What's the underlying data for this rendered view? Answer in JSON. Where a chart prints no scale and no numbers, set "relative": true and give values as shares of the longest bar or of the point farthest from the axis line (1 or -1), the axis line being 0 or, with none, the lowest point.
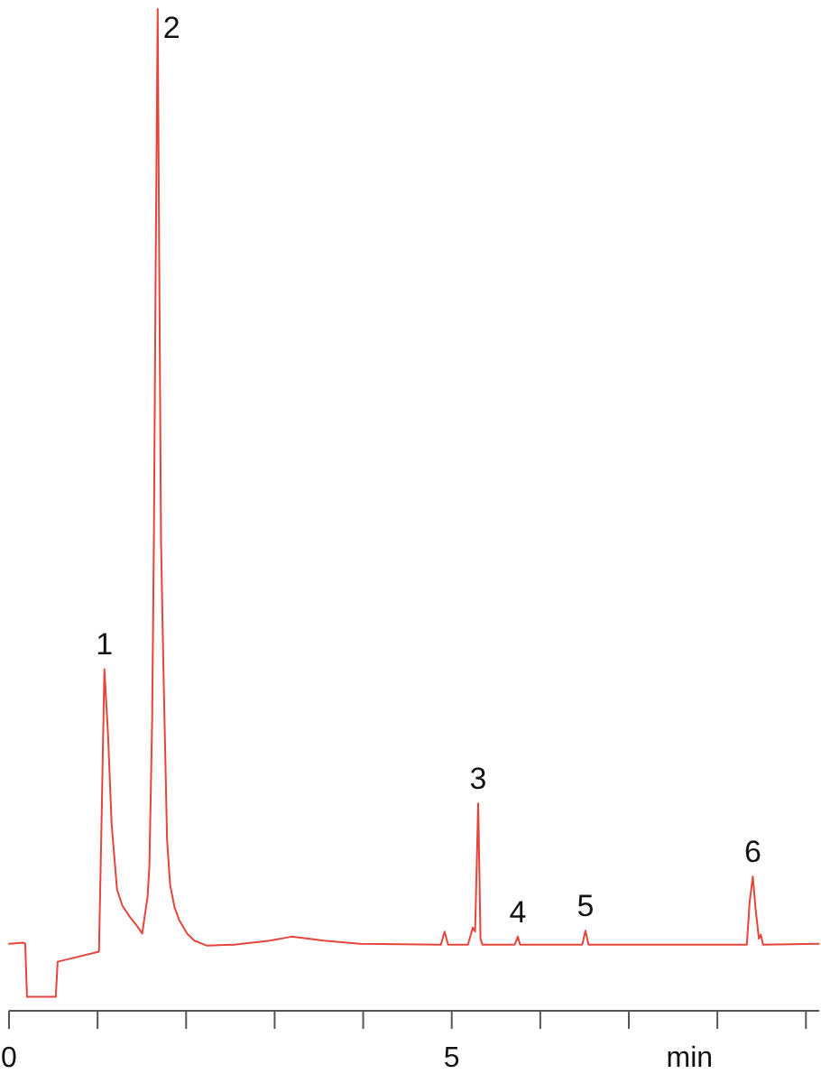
{
  "chart_data": {
    "type": "line",
    "xlabel": "min",
    "relative": true,
    "color": "#e5453b",
    "xlim": [
      0,
      9.15
    ],
    "xticks": [
      0,
      {
        "value": 1,
        "label": null
      },
      {
        "value": 2,
        "label": null
      },
      {
        "value": 3,
        "label": null
      },
      {
        "value": 4,
        "label": null
      },
      5,
      {
        "value": 6,
        "label": null
      },
      {
        "value": 7,
        "label": null
      },
      {
        "value": 8,
        "label": null
      },
      {
        "value": 9,
        "label": null
      }
    ],
    "x": [
      0,
      0.163,
      0.183,
      0.203,
      0.528,
      0.549,
      1.016,
      1.047,
      1.077,
      1.118,
      1.159,
      1.22,
      1.28,
      1.362,
      1.443,
      1.504,
      1.565,
      1.585,
      1.616,
      1.636,
      1.656,
      1.679,
      1.697,
      1.717,
      1.734,
      1.748,
      1.785,
      1.819,
      1.87,
      1.925,
      2.012,
      2.093,
      2.236,
      2.541,
      2.947,
      3.191,
      3.557,
      3.963,
      4.878,
      4.919,
      4.959,
      5.183,
      5.238,
      5.264,
      5.299,
      5.325,
      5.346,
      5.711,
      5.746,
      5.772,
      6.474,
      6.51,
      6.545,
      8.333,
      8.364,
      8.4,
      8.435,
      8.469,
      8.49,
      8.516,
      9.146
    ],
    "values": [
      0.067,
      0.068,
      0.067,
      0.014,
      0.014,
      0.049,
      0.059,
      0.198,
      0.341,
      0.276,
      0.186,
      0.121,
      0.105,
      0.094,
      0.085,
      0.077,
      0.114,
      0.144,
      0.288,
      0.468,
      0.739,
      1,
      0.739,
      0.468,
      0.387,
      0.324,
      0.171,
      0.126,
      0.103,
      0.09,
      0.077,
      0.07,
      0.065,
      0.066,
      0.07,
      0.074,
      0.07,
      0.067,
      0.066,
      0.079,
      0.066,
      0.066,
      0.083,
      0.079,
      0.207,
      0.072,
      0.066,
      0.066,
      0.074,
      0.066,
      0.066,
      0.08,
      0.066,
      0.066,
      0.108,
      0.134,
      0.099,
      0.072,
      0.076,
      0.066,
      0.067
    ],
    "annotations": [
      {
        "text": "1",
        "x": 1.077,
        "y": 0.341
      },
      {
        "text": "2",
        "x": 1.679,
        "y": 1
      },
      {
        "text": "3",
        "x": 5.299,
        "y": 0.207
      },
      {
        "text": "4",
        "x": 5.746,
        "y": 0.074
      },
      {
        "text": "5",
        "x": 6.51,
        "y": 0.08
      },
      {
        "text": "6",
        "x": 8.4,
        "y": 0.134
      }
    ]
  }
}
